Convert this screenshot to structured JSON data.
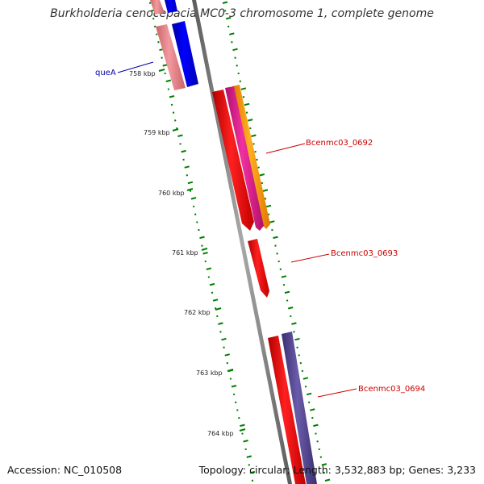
{
  "title": "Burkholderia cenocepacia MC0-3 chromosome 1, complete genome",
  "footer": {
    "accession": "Accession: NC_010508",
    "summary": "Topology: circular; Length: 3,532,883 bp; Genes: 3,233"
  },
  "ticks": [
    {
      "label": "758 kbp"
    },
    {
      "label": "759 kbp"
    },
    {
      "label": "760 kbp"
    },
    {
      "label": "761 kbp"
    },
    {
      "label": "762 kbp"
    },
    {
      "label": "763 kbp"
    },
    {
      "label": "764 kbp"
    }
  ],
  "gene_labels": [
    {
      "name": "queA",
      "color": "#0000aa"
    },
    {
      "name": "Bcenmc03_0692",
      "color": "#cc0000"
    },
    {
      "name": "Bcenmc03_0693",
      "color": "#cc0000"
    },
    {
      "name": "Bcenmc03_0694",
      "color": "#cc0000"
    }
  ],
  "colors": {
    "backbone": "#808080",
    "gc_skew_dots": "#008000",
    "cds_forward": "#ff0000",
    "cds_reverse_blue": "#0000ff",
    "feature_pink": "#e8868a",
    "feature_magenta": "#e0208a",
    "feature_orange": "#ff9900",
    "feature_slate": "#4b3f8a"
  }
}
